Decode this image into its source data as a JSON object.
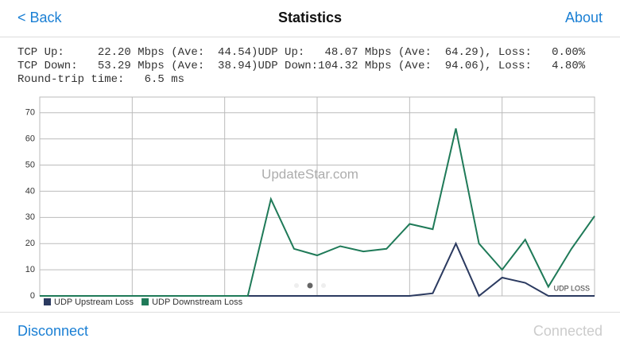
{
  "nav": {
    "back": "< Back",
    "title": "Statistics",
    "about": "About"
  },
  "stats": [
    "TCP Up:     22.20 Mbps (Ave:  44.54)UDP Up:   48.07 Mbps (Ave:  64.29), Loss:   0.00%",
    "TCP Down:   53.29 Mbps (Ave:  38.94)UDP Down:104.32 Mbps (Ave:  94.06), Loss:   4.80%",
    "Round-trip time:   6.5 ms"
  ],
  "chart_data": {
    "type": "line",
    "watermark": "UpdateStar.com",
    "annotation": "UDP LOSS",
    "categories": [
      null,
      null,
      null,
      null,
      null,
      null,
      null,
      null,
      null,
      null,
      null,
      null,
      null,
      null,
      null,
      null,
      null,
      null,
      null,
      null,
      null,
      null,
      null,
      null,
      null
    ],
    "series": [
      {
        "name": "UDP Upstream Loss",
        "color": "#2b3a60",
        "values": [
          0,
          0,
          0,
          0,
          0,
          0,
          0,
          0,
          0,
          0,
          0,
          0,
          0,
          0,
          0,
          0,
          0,
          1,
          20,
          0,
          7,
          5,
          0,
          0,
          0
        ]
      },
      {
        "name": "UDP Downstream Loss",
        "color": "#1f7a58",
        "values": [
          0,
          0,
          0,
          0,
          0,
          0,
          0,
          0,
          0,
          0,
          37,
          18,
          15.5,
          19,
          17,
          18,
          27.5,
          25.5,
          64,
          20,
          10,
          21.5,
          3.5,
          18,
          30.5
        ]
      }
    ],
    "ylim": [
      0,
      76
    ],
    "yticks": [
      0,
      10,
      20,
      30,
      40,
      50,
      60,
      70
    ],
    "grid": true
  },
  "footer": {
    "disconnect": "Disconnect",
    "status": "Connected"
  }
}
